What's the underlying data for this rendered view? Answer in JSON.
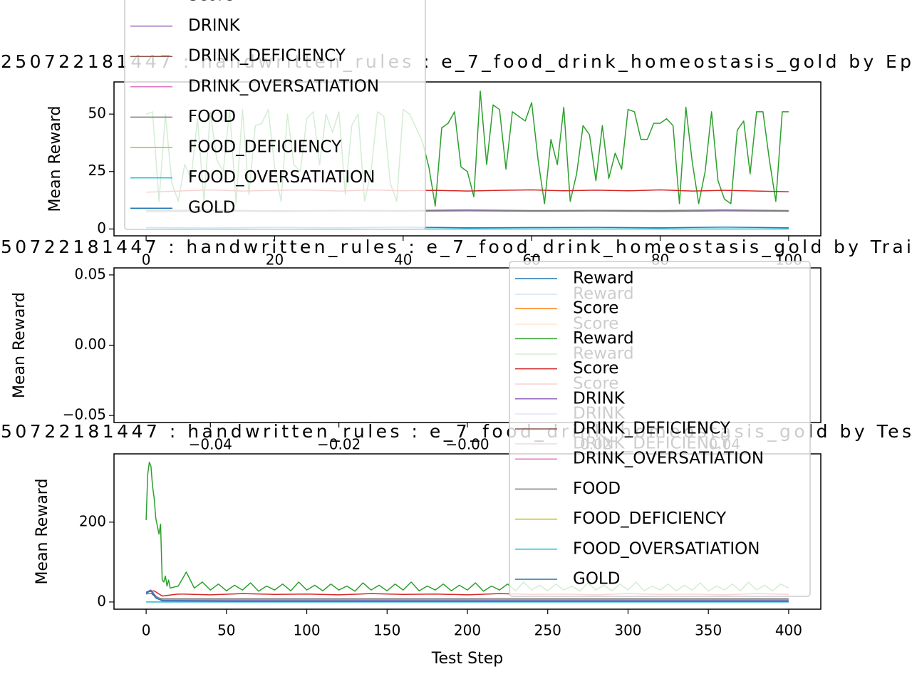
{
  "chart_data": [
    {
      "type": "line",
      "title": "250722181447 : handwritten_rules : e_7_food_drink_homeostasis_gold by Ep",
      "ylabel": "Mean Reward",
      "xlim": [
        -5,
        105
      ],
      "xticks": [
        0,
        20,
        40,
        60,
        80,
        100
      ],
      "ylim": [
        -3,
        64
      ],
      "yticks": [
        0,
        25,
        50
      ],
      "legend": [
        {
          "label": "Score",
          "color": "#d62728"
        },
        {
          "label": "DRINK",
          "color": "#9467bd"
        },
        {
          "label": "DRINK_DEFICIENCY",
          "color": "#8c564b"
        },
        {
          "label": "DRINK_OVERSATIATION",
          "color": "#e377c2"
        },
        {
          "label": "FOOD",
          "color": "#7f7f7f"
        },
        {
          "label": "FOOD_DEFICIENCY",
          "color": "#bcbd22"
        },
        {
          "label": "FOOD_OVERSATIATION",
          "color": "#17becf"
        },
        {
          "label": "GOLD",
          "color": "#1f77b4"
        }
      ],
      "series": [
        {
          "name": "Reward",
          "color": "#2ca02c",
          "x": [
            0,
            1,
            2,
            3,
            4,
            5,
            6,
            7,
            8,
            9,
            10,
            11,
            12,
            13,
            14,
            15,
            16,
            17,
            18,
            19,
            20,
            21,
            22,
            23,
            24,
            25,
            26,
            27,
            28,
            29,
            30,
            31,
            32,
            33,
            34,
            35,
            36,
            37,
            38,
            39,
            40,
            41,
            42,
            43,
            44,
            45,
            46,
            47,
            48,
            49,
            50,
            51,
            52,
            53,
            54,
            55,
            56,
            57,
            58,
            59,
            60,
            61,
            62,
            63,
            64,
            65,
            66,
            67,
            68,
            69,
            70,
            71,
            72,
            73,
            74,
            75,
            76,
            77,
            78,
            79,
            80,
            81,
            82,
            83,
            84,
            85,
            86,
            87,
            88,
            89,
            90,
            91,
            92,
            93,
            94,
            95,
            96,
            97,
            98,
            99,
            100
          ],
          "values": [
            50,
            51,
            12,
            50,
            20,
            12,
            28,
            22,
            48,
            12,
            51,
            30,
            25,
            52,
            11,
            52,
            15,
            45,
            46,
            52,
            27,
            12,
            50,
            28,
            25,
            48,
            51,
            28,
            50,
            42,
            51,
            15,
            45,
            50,
            12,
            25,
            51,
            49,
            20,
            12,
            52,
            50,
            44,
            38,
            27,
            10,
            44,
            46,
            51,
            27,
            25,
            14,
            60,
            28,
            54,
            52,
            26,
            51,
            49,
            47,
            55,
            30,
            11,
            39,
            28,
            53,
            12,
            24,
            45,
            41,
            21,
            45,
            22,
            33,
            26,
            52,
            51,
            39,
            39,
            46,
            46,
            48,
            45,
            11,
            53,
            29,
            11,
            25,
            51,
            21,
            13,
            11,
            43,
            47,
            24,
            51,
            51,
            30,
            12,
            51,
            51
          ]
        },
        {
          "name": "Score",
          "color": "#d62728",
          "x": [
            0,
            5,
            10,
            15,
            20,
            25,
            30,
            35,
            40,
            45,
            50,
            55,
            60,
            65,
            70,
            75,
            80,
            85,
            90,
            95,
            100
          ],
          "values": [
            16,
            16.5,
            17,
            16.5,
            16.8,
            17,
            16.5,
            17,
            16.6,
            16.8,
            16.5,
            16.8,
            17,
            16.6,
            16.9,
            16.6,
            17,
            16.5,
            16.8,
            16.5,
            16.2
          ]
        },
        {
          "name": "DRINK",
          "color": "#9467bd",
          "x": [
            0,
            10,
            20,
            30,
            40,
            50,
            60,
            70,
            80,
            90,
            100
          ],
          "values": [
            7.5,
            7.8,
            7.6,
            7.8,
            7.7,
            7.9,
            7.7,
            7.8,
            7.6,
            7.9,
            7.7
          ]
        },
        {
          "name": "FOOD",
          "color": "#7f7f7f",
          "x": [
            0,
            10,
            20,
            30,
            40,
            50,
            60,
            70,
            80,
            90,
            100
          ],
          "values": [
            8,
            8.2,
            7.9,
            8.1,
            8,
            8.3,
            8,
            8.1,
            8,
            8.3,
            8
          ]
        },
        {
          "name": "FOOD_OVERSATIATION",
          "color": "#17becf",
          "x": [
            0,
            10,
            20,
            30,
            40,
            50,
            60,
            70,
            80,
            90,
            100
          ],
          "values": [
            0,
            0,
            0,
            0,
            0,
            0,
            0,
            0,
            0,
            0,
            0
          ]
        },
        {
          "name": "GOLD",
          "color": "#1f77b4",
          "x": [
            0,
            10,
            20,
            30,
            40,
            50,
            60,
            70,
            80,
            90,
            100
          ],
          "values": [
            0.6,
            0.4,
            0.7,
            0.5,
            0.8,
            0.5,
            0.6,
            0.7,
            0.5,
            0.8,
            0.5
          ]
        }
      ]
    },
    {
      "type": "line",
      "title": "50722181447 : handwritten_rules : e_7_food_drink_homeostasis_gold by Trai",
      "ylabel": "Mean Reward",
      "xlim": [
        -0.055,
        0.055
      ],
      "xticks": [
        {
          "value": -0.04,
          "label": "−0.04"
        },
        {
          "value": -0.02,
          "label": "−0.02"
        },
        {
          "value": 0,
          "label": "−0.00"
        },
        0.02,
        0.04
      ],
      "ylim": [
        -0.055,
        0.055
      ],
      "yticks": [
        {
          "value": -0.05,
          "label": "−0.05"
        },
        {
          "value": 0,
          "label": "0.00"
        },
        0.05
      ],
      "legend": [
        {
          "label": "Reward",
          "color": "#1f77b4"
        },
        {
          "label": "Score",
          "color": "#ff7f0e"
        },
        {
          "label": "Reward",
          "color": "#2ca02c"
        },
        {
          "label": "Score",
          "color": "#d62728"
        },
        {
          "label": "DRINK",
          "color": "#9467bd"
        },
        {
          "label": "DRINK_DEFICIENCY",
          "color": "#8c564b"
        }
      ],
      "series": []
    },
    {
      "type": "line",
      "title": "50722181447 : handwritten_rules : e_7_food_drink_homeostasis_gold by Tes",
      "ylabel": "Mean Reward",
      "xlabel": "Test Step",
      "xlim": [
        -20,
        420
      ],
      "xticks": [
        0,
        50,
        100,
        150,
        200,
        250,
        300,
        350,
        400
      ],
      "ylim": [
        -18,
        371
      ],
      "yticks": [
        0,
        200
      ],
      "legend": [
        {
          "label": "Reward",
          "color": "#1f77b4"
        },
        {
          "label": "Score",
          "color": "#ff7f0e"
        },
        {
          "label": "Reward",
          "color": "#2ca02c"
        },
        {
          "label": "Score",
          "color": "#d62728"
        },
        {
          "label": "DRINK",
          "color": "#9467bd"
        },
        {
          "label": "DRINK_DEFICIENCY",
          "color": "#8c564b"
        },
        {
          "label": "DRINK_OVERSATIATION",
          "color": "#e377c2"
        },
        {
          "label": "FOOD",
          "color": "#7f7f7f"
        },
        {
          "label": "FOOD_DEFICIENCY",
          "color": "#bcbd22"
        },
        {
          "label": "FOOD_OVERSATIATION",
          "color": "#17becf"
        },
        {
          "label": "GOLD",
          "color": "#1f77b4"
        }
      ],
      "series": [
        {
          "name": "Reward",
          "color": "#2ca02c",
          "x": [
            0,
            1,
            2,
            3,
            4,
            5,
            6,
            7,
            8,
            9,
            10,
            11,
            12,
            13,
            14,
            15,
            20,
            25,
            30,
            35,
            40,
            45,
            50,
            55,
            60,
            65,
            70,
            75,
            80,
            85,
            90,
            95,
            100,
            105,
            110,
            115,
            120,
            125,
            130,
            135,
            140,
            145,
            150,
            155,
            160,
            165,
            170,
            175,
            180,
            185,
            190,
            195,
            200,
            205,
            210,
            215,
            220,
            225,
            230,
            235,
            240,
            245,
            250,
            255,
            260,
            265,
            270,
            275,
            280,
            285,
            290,
            295,
            300,
            305,
            310,
            315,
            320,
            325,
            330,
            335,
            340,
            345,
            350,
            355,
            360,
            365,
            370,
            375,
            380,
            385,
            390,
            395,
            400
          ],
          "values": [
            205,
            320,
            350,
            340,
            290,
            260,
            210,
            190,
            170,
            195,
            55,
            50,
            65,
            40,
            55,
            35,
            40,
            75,
            35,
            50,
            30,
            45,
            28,
            42,
            30,
            48,
            27,
            40,
            30,
            45,
            28,
            50,
            30,
            42,
            28,
            45,
            30,
            40,
            27,
            48,
            30,
            42,
            28,
            45,
            30,
            50,
            28,
            40,
            30,
            45,
            28,
            42,
            30,
            48,
            27,
            40,
            30,
            45,
            28,
            50,
            30,
            42,
            28,
            45,
            30,
            40,
            27,
            48,
            30,
            42,
            28,
            45,
            30,
            50,
            28,
            40,
            30,
            45,
            28,
            42,
            30,
            48,
            27,
            40,
            30,
            45,
            28,
            50,
            30,
            42,
            28,
            45,
            35
          ]
        },
        {
          "name": "Score",
          "color": "#d62728",
          "x": [
            0,
            5,
            10,
            20,
            40,
            60,
            80,
            100,
            120,
            140,
            160,
            180,
            200,
            220,
            240,
            260,
            280,
            300,
            320,
            340,
            360,
            380,
            400
          ],
          "values": [
            25,
            28,
            15,
            20,
            18,
            21,
            19,
            20,
            18,
            21,
            19,
            20,
            18,
            21,
            19,
            20,
            18,
            21,
            19,
            20,
            18,
            21,
            19
          ]
        },
        {
          "name": "DRINK",
          "color": "#9467bd",
          "x": [
            0,
            3,
            6,
            10,
            50,
            100,
            150,
            200,
            250,
            300,
            350,
            400
          ],
          "values": [
            25,
            30,
            15,
            5,
            5,
            5,
            5,
            5,
            5,
            5,
            5,
            5
          ]
        },
        {
          "name": "FOOD",
          "color": "#7f7f7f",
          "x": [
            0,
            3,
            6,
            10,
            50,
            100,
            150,
            200,
            250,
            300,
            350,
            400
          ],
          "values": [
            20,
            22,
            12,
            8,
            8,
            8,
            8,
            8,
            8,
            8,
            8,
            8
          ]
        },
        {
          "name": "FOOD_OVERSATIATION",
          "color": "#17becf",
          "x": [
            0,
            3,
            6,
            10,
            50,
            100,
            150,
            200,
            250,
            300,
            350,
            400
          ],
          "values": [
            0,
            0,
            0,
            0,
            0,
            0,
            0,
            0,
            0,
            0,
            0,
            0
          ]
        },
        {
          "name": "GOLD",
          "color": "#1f77b4",
          "x": [
            0,
            3,
            6,
            10,
            50,
            100,
            150,
            200,
            250,
            300,
            350,
            400
          ],
          "values": [
            22,
            28,
            10,
            3,
            2,
            2,
            2,
            2,
            2,
            2,
            2,
            2
          ]
        }
      ]
    }
  ]
}
